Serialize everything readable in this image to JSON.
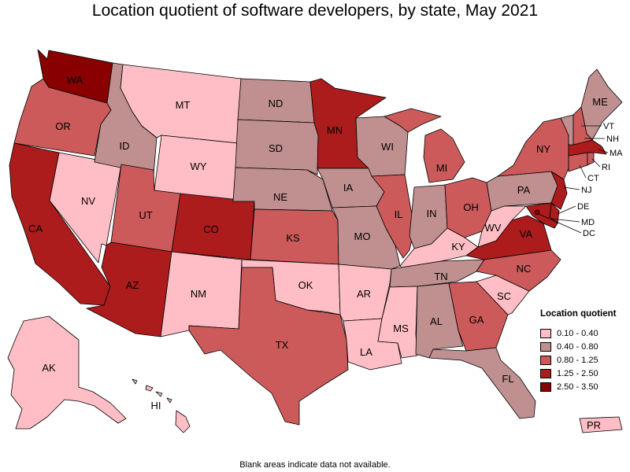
{
  "title": "Location quotient of software developers, by state, May 2021",
  "footnote": "Blank areas indicate data not available.",
  "legend": {
    "title": "Location quotient",
    "items": [
      {
        "label": "0.10 - 0.40",
        "color": "#ffbec5"
      },
      {
        "label": "0.40 - 0.80",
        "color": "#c09090"
      },
      {
        "label": "0.80 - 1.25",
        "color": "#cc5a5a"
      },
      {
        "label": "1.25 - 2.50",
        "color": "#ac1c1c"
      },
      {
        "label": "2.50 - 3.50",
        "color": "#880000"
      }
    ]
  },
  "states": {
    "WA": {
      "label": "WA",
      "class": 4
    },
    "OR": {
      "label": "OR",
      "class": 2
    },
    "CA": {
      "label": "CA",
      "class": 3
    },
    "NV": {
      "label": "NV",
      "class": 0
    },
    "ID": {
      "label": "ID",
      "class": 1
    },
    "MT": {
      "label": "MT",
      "class": 0
    },
    "WY": {
      "label": "WY",
      "class": 0
    },
    "UT": {
      "label": "UT",
      "class": 2
    },
    "AZ": {
      "label": "AZ",
      "class": 3
    },
    "CO": {
      "label": "CO",
      "class": 3
    },
    "NM": {
      "label": "NM",
      "class": 0
    },
    "ND": {
      "label": "ND",
      "class": 1
    },
    "SD": {
      "label": "SD",
      "class": 1
    },
    "NE": {
      "label": "NE",
      "class": 1
    },
    "KS": {
      "label": "KS",
      "class": 2
    },
    "OK": {
      "label": "OK",
      "class": 0
    },
    "TX": {
      "label": "TX",
      "class": 2
    },
    "MN": {
      "label": "MN",
      "class": 3
    },
    "IA": {
      "label": "IA",
      "class": 1
    },
    "MO": {
      "label": "MO",
      "class": 1
    },
    "AR": {
      "label": "AR",
      "class": 0
    },
    "LA": {
      "label": "LA",
      "class": 0
    },
    "WI": {
      "label": "WI",
      "class": 1
    },
    "IL": {
      "label": "IL",
      "class": 2
    },
    "MS": {
      "label": "MS",
      "class": 0
    },
    "MI": {
      "label": "MI",
      "class": 2
    },
    "IN": {
      "label": "IN",
      "class": 1
    },
    "KY": {
      "label": "KY",
      "class": 0
    },
    "TN": {
      "label": "TN",
      "class": 1
    },
    "AL": {
      "label": "AL",
      "class": 1
    },
    "OH": {
      "label": "OH",
      "class": 2
    },
    "GA": {
      "label": "GA",
      "class": 2
    },
    "FL": {
      "label": "FL",
      "class": 1
    },
    "SC": {
      "label": "SC",
      "class": 0
    },
    "NC": {
      "label": "NC",
      "class": 2
    },
    "VA": {
      "label": "VA",
      "class": 3
    },
    "WV": {
      "label": "WV",
      "class": 0
    },
    "PA": {
      "label": "PA",
      "class": 1
    },
    "NY": {
      "label": "NY",
      "class": 2
    },
    "ME": {
      "label": "ME",
      "class": 1
    },
    "VT": {
      "label": "VT",
      "class": 1
    },
    "NH": {
      "label": "NH",
      "class": 2
    },
    "MA": {
      "label": "MA",
      "class": 3
    },
    "RI": {
      "label": "RI",
      "class": 2
    },
    "CT": {
      "label": "CT",
      "class": 2
    },
    "NJ": {
      "label": "NJ",
      "class": 3
    },
    "DE": {
      "label": "DE",
      "class": 3
    },
    "MD": {
      "label": "MD",
      "class": 3
    },
    "DC": {
      "label": "DC",
      "class": 4
    },
    "AK": {
      "label": "AK",
      "class": 0
    },
    "HI": {
      "label": "HI",
      "class": 0
    },
    "PR": {
      "label": "PR",
      "class": 0
    }
  }
}
